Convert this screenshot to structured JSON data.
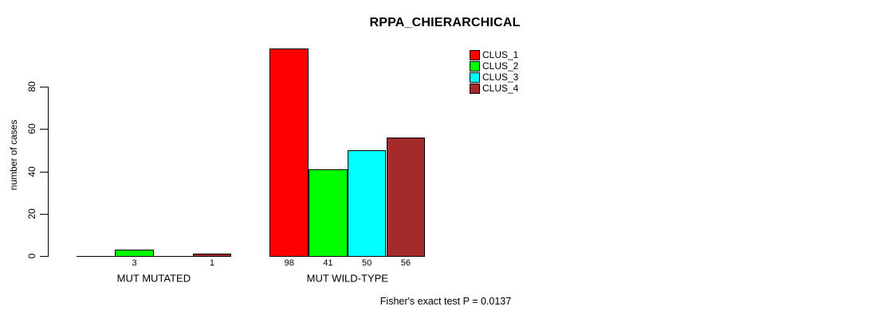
{
  "title": "RPPA_CHIERARCHICAL",
  "footer": "Fisher's exact test P = 0.0137",
  "chart_data": {
    "type": "bar",
    "title": "RPPA_CHIERARCHICAL",
    "xlabel": "",
    "ylabel": "number of cases",
    "ylim": [
      0,
      98
    ],
    "yticks": [
      0,
      20,
      40,
      60,
      80
    ],
    "grid": false,
    "legend_position": "top-right",
    "categories": [
      "MUT MUTATED",
      "MUT WILD-TYPE"
    ],
    "series": [
      {
        "name": "CLUS_1",
        "color": "#FF0000",
        "values": [
          0,
          98
        ]
      },
      {
        "name": "CLUS_2",
        "color": "#00FF00",
        "values": [
          3,
          41
        ]
      },
      {
        "name": "CLUS_3",
        "color": "#00FFFF",
        "values": [
          0,
          50
        ]
      },
      {
        "name": "CLUS_4",
        "color": "#A52A2A",
        "values": [
          1,
          56
        ]
      }
    ],
    "bar_value_labels": {
      "shown_for": "nonzero",
      "values_group_1": [
        3,
        1
      ],
      "values_group_2": [
        98,
        41,
        50,
        56
      ]
    },
    "annotation": "Fisher's exact test P = 0.0137"
  },
  "colors": {
    "background": "#FFFFFF",
    "axis": "#000000",
    "text": "#000000",
    "clus_1": "#FF0000",
    "clus_2": "#00FF00",
    "clus_3": "#00FFFF",
    "clus_4": "#A52A2A"
  }
}
